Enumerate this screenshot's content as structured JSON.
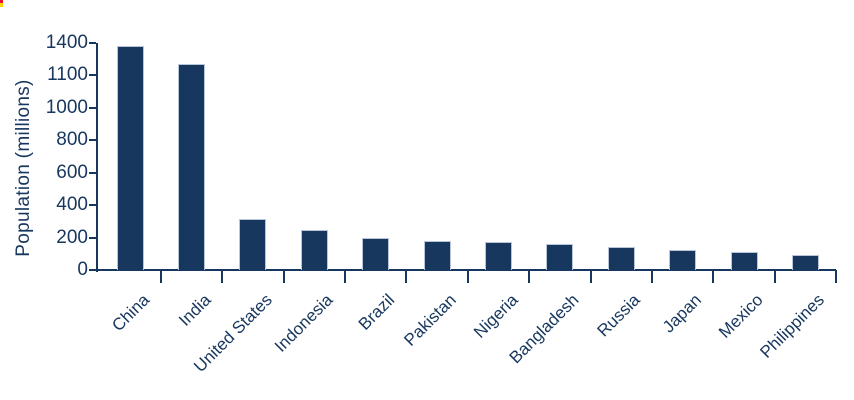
{
  "chart_data": {
    "type": "bar",
    "title": "",
    "xlabel": "",
    "ylabel": "Population (millions)",
    "categories": [
      "China",
      "India",
      "United States",
      "Indonesia",
      "Brazil",
      "Pakistan",
      "Nigeria",
      "Bangladesh",
      "Russia",
      "Japan",
      "Mexico",
      "Philippines"
    ],
    "values": [
      1380,
      1270,
      315,
      245,
      200,
      180,
      170,
      160,
      143,
      125,
      112,
      90
    ],
    "ylim": [
      0,
      1400
    ],
    "ytick_labels_top_to_bottom": [
      "1400",
      "1100",
      "1000",
      "800",
      "600",
      "400",
      "200",
      "0"
    ],
    "grid": false,
    "legend": false,
    "colors": {
      "bar_fill": "#17375e",
      "bar_outline": "#b9c5d9",
      "axis": "#17375e",
      "text": "#17375e"
    }
  },
  "decor": {
    "corner_mark_top_color": "#e8112d",
    "corner_mark_bottom_color": "#ffd100"
  }
}
